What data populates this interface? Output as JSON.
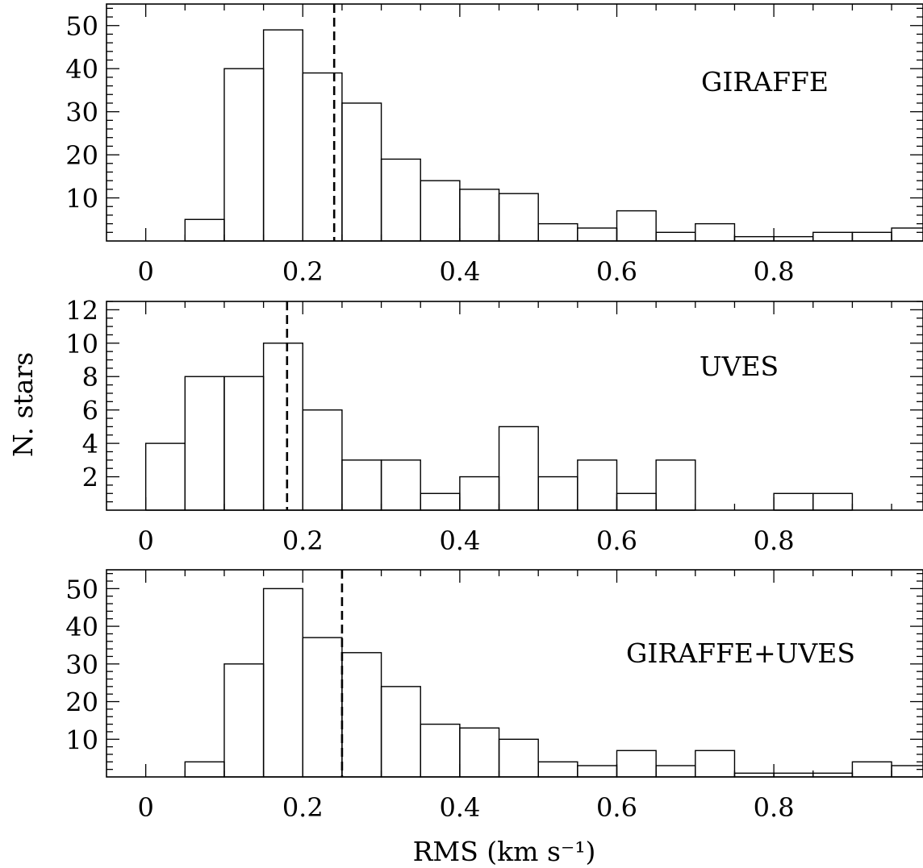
{
  "figure": {
    "ylabel": "N. stars",
    "xlabel": "RMS (km s⁻¹)"
  },
  "chart_data": [
    {
      "type": "bar",
      "label": "GIRAFFE",
      "bin_edges": [
        0,
        0.05,
        0.1,
        0.15,
        0.2,
        0.25,
        0.3,
        0.35,
        0.4,
        0.45,
        0.5,
        0.55,
        0.6,
        0.65,
        0.7,
        0.75,
        0.8,
        0.85,
        0.9,
        0.95,
        1.0
      ],
      "values": [
        0,
        5,
        40,
        49,
        39,
        32,
        19,
        14,
        12,
        11,
        4,
        3,
        7,
        2,
        4,
        1,
        1,
        2,
        2,
        3
      ],
      "median_line": 0.24,
      "xlim": [
        -0.05,
        0.99
      ],
      "ylim": [
        0,
        55
      ],
      "xticks": [
        0,
        0.2,
        0.4,
        0.6,
        0.8
      ],
      "xtick_labels": [
        "0",
        "0.2",
        "0.4",
        "0.6",
        "0.8"
      ],
      "yticks": [
        10,
        20,
        30,
        40,
        50
      ],
      "ytick_labels": [
        "10",
        "20",
        "30",
        "40",
        "50"
      ],
      "minor_x": 0.05,
      "minor_y": 2
    },
    {
      "type": "bar",
      "label": "UVES",
      "bin_edges": [
        0,
        0.05,
        0.1,
        0.15,
        0.2,
        0.25,
        0.3,
        0.35,
        0.4,
        0.45,
        0.5,
        0.55,
        0.6,
        0.65,
        0.7,
        0.75,
        0.8,
        0.85,
        0.9
      ],
      "values": [
        4,
        8,
        8,
        10,
        6,
        3,
        3,
        1,
        2,
        5,
        2,
        3,
        1,
        3,
        0,
        0,
        1,
        1
      ],
      "median_line": 0.18,
      "xlim": [
        -0.05,
        0.99
      ],
      "ylim": [
        0,
        12.5
      ],
      "xticks": [
        0,
        0.2,
        0.4,
        0.6,
        0.8
      ],
      "xtick_labels": [
        "0",
        "0.2",
        "0.4",
        "0.6",
        "0.8"
      ],
      "yticks": [
        2,
        4,
        6,
        8,
        10,
        12
      ],
      "ytick_labels": [
        "2",
        "4",
        "6",
        "8",
        "10",
        "12"
      ],
      "minor_x": 0.05,
      "minor_y": 0.5
    },
    {
      "type": "bar",
      "label": "GIRAFFE+UVES",
      "bin_edges": [
        0,
        0.05,
        0.1,
        0.15,
        0.2,
        0.25,
        0.3,
        0.35,
        0.4,
        0.45,
        0.5,
        0.55,
        0.6,
        0.65,
        0.7,
        0.75,
        0.8,
        0.85,
        0.9,
        0.95,
        1.0
      ],
      "values": [
        0,
        4,
        30,
        50,
        37,
        33,
        24,
        14,
        13,
        10,
        4,
        3,
        7,
        3,
        7,
        1,
        1,
        1,
        4,
        3
      ],
      "median_line": 0.25,
      "xlim": [
        -0.05,
        0.99
      ],
      "ylim": [
        0,
        55
      ],
      "xticks": [
        0,
        0.2,
        0.4,
        0.6,
        0.8
      ],
      "xtick_labels": [
        "0",
        "0.2",
        "0.4",
        "0.6",
        "0.8"
      ],
      "yticks": [
        10,
        20,
        30,
        40,
        50
      ],
      "ytick_labels": [
        "10",
        "20",
        "30",
        "40",
        "50"
      ],
      "minor_x": 0.05,
      "minor_y": 2
    }
  ]
}
